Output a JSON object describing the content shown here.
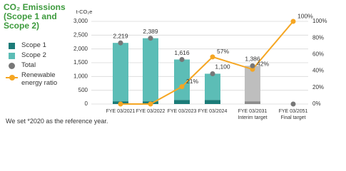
{
  "chart_data": {
    "type": "bar",
    "title": "CO₂ Emissions (Scope 1 and Scope 2)",
    "y_label": "t-CO₂e",
    "footnote": "We set *2020 as the reference year.",
    "categories": [
      [
        "FYE 03/2021"
      ],
      [
        "FYE 03/2022"
      ],
      [
        "FYE 03/2023"
      ],
      [
        "FYE 03/2024"
      ],
      [
        "FYE 03/2031",
        "Interim target"
      ],
      [
        "FYE 03/2051",
        "Final target"
      ]
    ],
    "ylim": [
      0,
      3000
    ],
    "yticks": [
      0,
      {
        "value": 500,
        "label": "500"
      },
      {
        "value": 1000,
        "label": "1,000"
      },
      {
        "value": 1500,
        "label": "1,500"
      },
      {
        "value": 2000,
        "label": "2,000"
      },
      {
        "value": 2500,
        "label": "2,500"
      },
      {
        "value": 3000,
        "label": "3,000"
      }
    ],
    "y2lim": [
      0,
      100
    ],
    "y2ticks": [
      {
        "value": 0,
        "label": "0%"
      },
      {
        "value": 20,
        "label": "20%"
      },
      {
        "value": 40,
        "label": "40%"
      },
      {
        "value": 60,
        "label": "60%"
      },
      {
        "value": 80,
        "label": "80%"
      },
      {
        "value": 100,
        "label": "100%"
      }
    ],
    "grid": true,
    "series": [
      {
        "name": "Scope 1",
        "type": "bar",
        "color": "#1b7b78",
        "colors": [
          "#1b7b78",
          "#1b7b78",
          "#1b7b78",
          "#1b7b78",
          "#8c8c8c",
          null
        ],
        "values": [
          100,
          100,
          150,
          150,
          100,
          null
        ]
      },
      {
        "name": "Scope 2",
        "type": "bar",
        "color": "#5cbdb6",
        "colors": [
          "#5cbdb6",
          "#5cbdb6",
          "#5cbdb6",
          "#5cbdb6",
          "#bebebe",
          null
        ],
        "values": [
          2119,
          2289,
          1466,
          950,
          1286,
          null
        ]
      },
      {
        "name": "Total",
        "type": "scatter",
        "color": "#777777",
        "values": [
          2219,
          2389,
          1616,
          1100,
          1386,
          0
        ],
        "value_labels": [
          "2,219",
          "2,389",
          "1,616",
          "1,100",
          "1,386",
          null
        ]
      },
      {
        "name": "Renewable energy ratio",
        "type": "line",
        "axis": "y2",
        "color": "#f5a623",
        "values": [
          0,
          0,
          21,
          57,
          42,
          100
        ],
        "value_labels": [
          null,
          null,
          "21%",
          "57%",
          "42%",
          "100%"
        ]
      }
    ]
  }
}
